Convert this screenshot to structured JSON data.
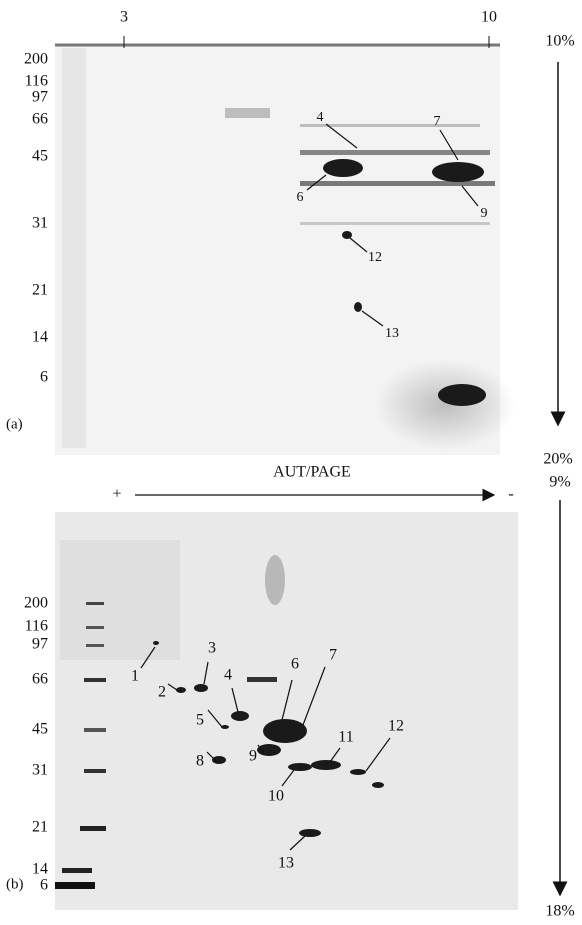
{
  "panel_a": {
    "label": "(a)",
    "ph_labels": [
      "3",
      "10"
    ],
    "mw_markers": [
      "200",
      "116",
      "97",
      "66",
      "45",
      "31",
      "21",
      "14",
      "6"
    ],
    "gradient": [
      "10%",
      "20%"
    ],
    "spots": [
      "4",
      "7",
      "6",
      "9",
      "12",
      "13"
    ]
  },
  "panel_b": {
    "label": "(b)",
    "direction": {
      "plus": "+",
      "title": "AUT/PAGE",
      "minus": "-"
    },
    "mw_markers": [
      "200",
      "116",
      "97",
      "66",
      "45",
      "31",
      "21",
      "14",
      "6"
    ],
    "gradient": [
      "9%",
      "18%"
    ],
    "spots": [
      "1",
      "2",
      "3",
      "4",
      "5",
      "6",
      "7",
      "8",
      "9",
      "10",
      "11",
      "12",
      "13"
    ]
  }
}
